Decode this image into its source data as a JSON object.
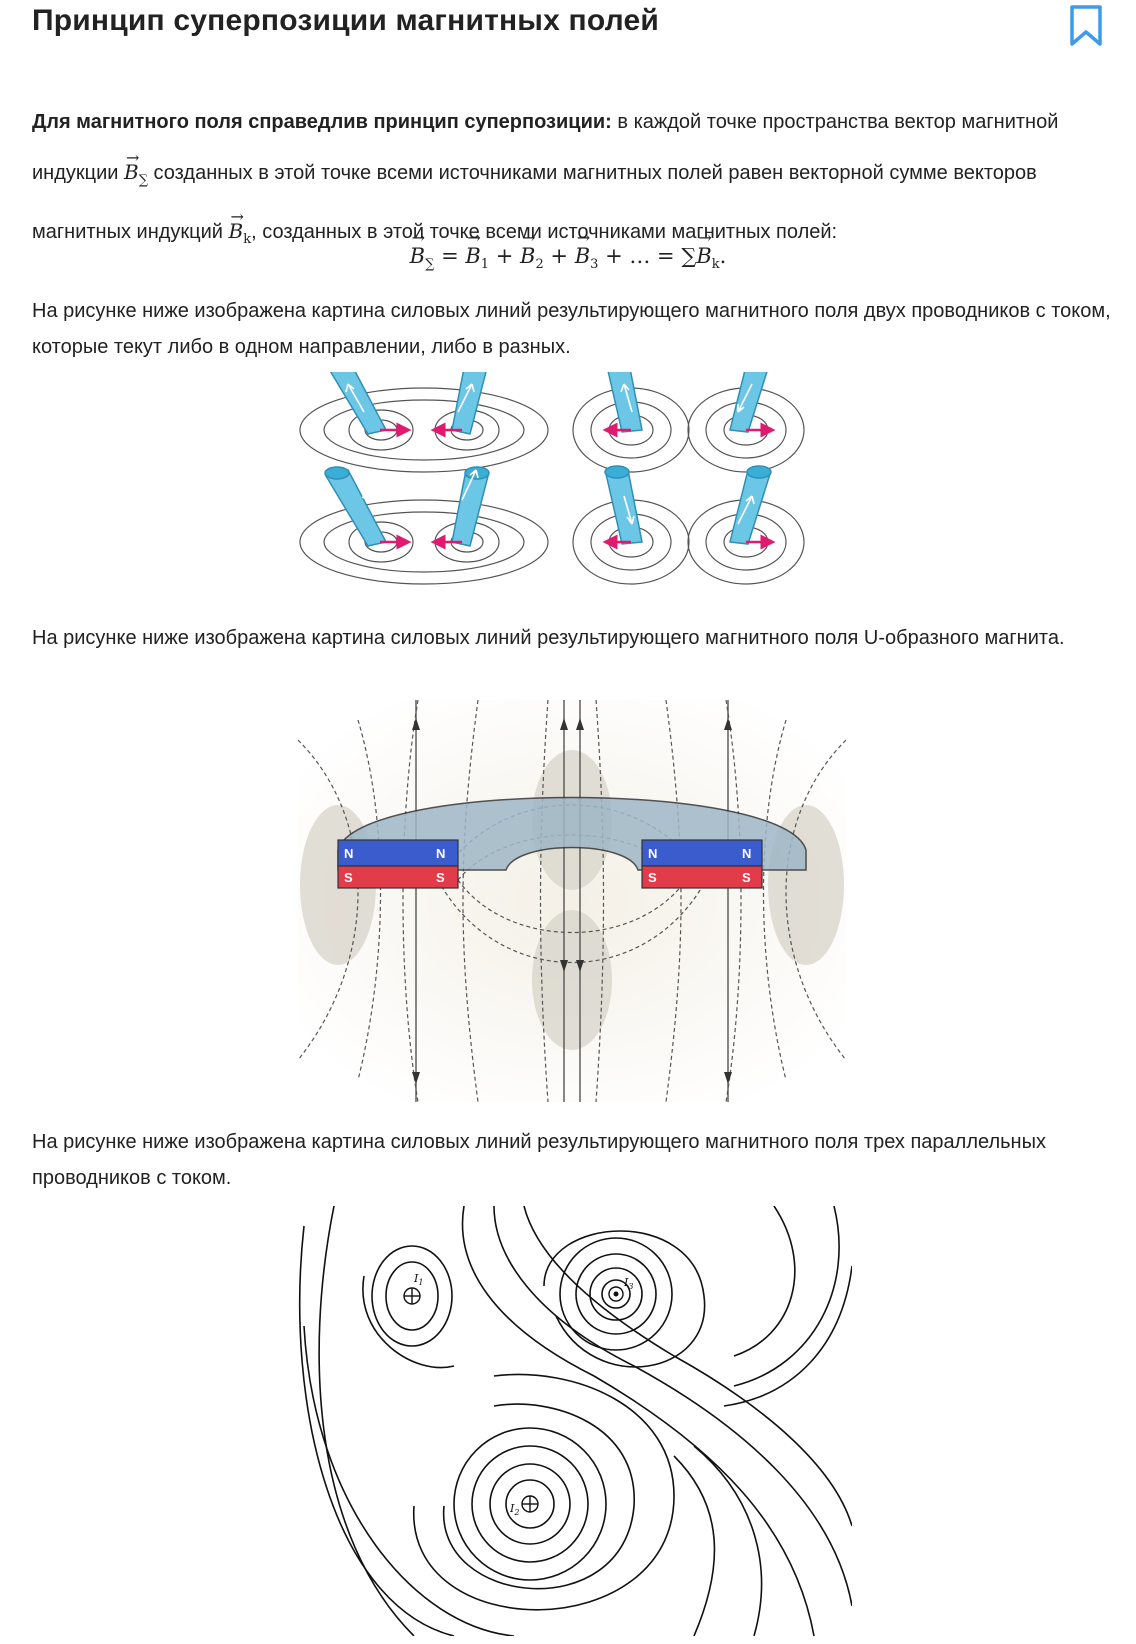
{
  "title": "Принцип суперпозиции магнитных полей",
  "icons": {
    "bookmark": "bookmark-icon"
  },
  "colors": {
    "bookmark": "#3d9be9",
    "wire": "#6cc6e6",
    "arrow": "#e01b6f",
    "north": "#3a5ccc",
    "south": "#e23c4a"
  },
  "para1": {
    "bold": "Для магнитного поля справедлив принцип суперпозиции:",
    "t1": " в каждой точке пространства вектор магнитной индукции ",
    "t2": " созданных в этой точке всеми источниками магнитных полей равен векторной сумме векторов магнитных индукций ",
    "t3": ", созданных в этой точке всеми источниками магнитных полей:"
  },
  "math": {
    "B": "B",
    "sum": "∑",
    "k": "k",
    "one": "1",
    "two": "2",
    "three": "3",
    "eq": " = ",
    "plus": " + ",
    "dots": "…",
    "period": "."
  },
  "para2": "На рисунке ниже изображена картина силовых линий результирующего магнитного поля двух проводников с током, которые текут либо в одном направлении, либо в разных.",
  "para3": "На рисунке ниже изображена картина силовых линий результирующего магнитного поля U-образного магнита.",
  "para4": "На рисунке ниже изображена картина силовых линий результирующего магнитного поля трех параллельных проводников с током.",
  "magnet": {
    "n": "N",
    "s": "S"
  },
  "wires": {
    "i1": "I",
    "i2": "I",
    "i3": "I",
    "s1": "1",
    "s2": "2",
    "s3": "3"
  }
}
